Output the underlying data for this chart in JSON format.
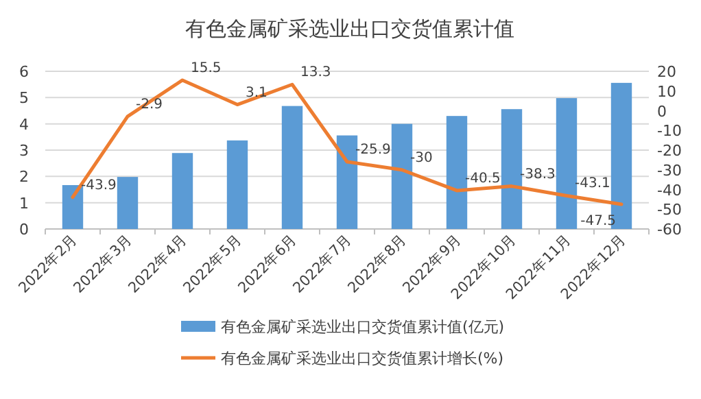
{
  "chart_data": {
    "type": "bar",
    "title": "有色金属矿采选业出口交货值累计值",
    "categories": [
      "2022年2月",
      "2022年3月",
      "2022年4月",
      "2022年5月",
      "2022年6月",
      "2022年7月",
      "2022年8月",
      "2022年9月",
      "2022年10月",
      "2022年11月",
      "2022年12月"
    ],
    "series": [
      {
        "name": "有色金属矿采选业出口交货值累计值(亿元)",
        "color": "#5b9bd5",
        "values": [
          1.67,
          1.98,
          2.89,
          3.37,
          4.68,
          3.56,
          4.0,
          4.3,
          4.56,
          4.98,
          5.56
        ]
      },
      {
        "name": "有色金属矿采选业出口交货值累计增长(%)",
        "type": "line",
        "axis": "y2",
        "color": "#ed7d31",
        "values": [
          -43.9,
          -2.9,
          15.5,
          3.1,
          13.3,
          -25.9,
          -30,
          -40.5,
          -38.3,
          -43.1,
          -47.5
        ],
        "data_labels": true
      }
    ],
    "ylim": [
      0,
      6
    ],
    "yticks": [
      0,
      1,
      2,
      3,
      4,
      5,
      6
    ],
    "y2lim": [
      -60,
      20
    ],
    "y2ticks": [
      -60,
      -50,
      -40,
      -30,
      -20,
      -10,
      0,
      10,
      20
    ],
    "grid": "y",
    "legend": "bottom",
    "marker": "none"
  }
}
